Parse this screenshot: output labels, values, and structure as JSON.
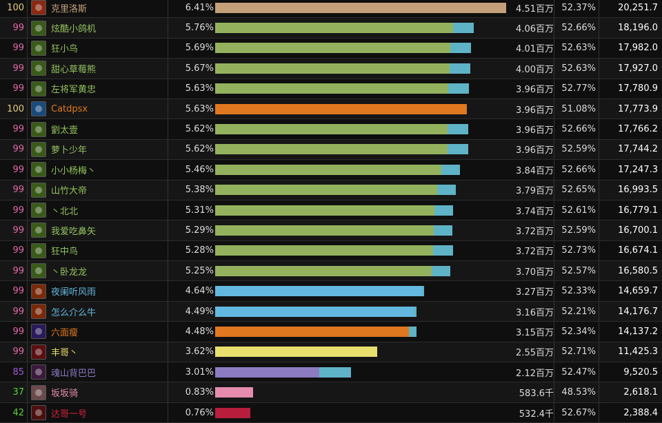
{
  "colors": {
    "resto_bar": "#94b25e",
    "orange_bar": "#e0781f",
    "blue_bar": "#63b8df",
    "tan_bar": "#c4a07a",
    "yellow_bar": "#e8df6e",
    "purple_bar": "#8c7bc1",
    "pink_bar": "#e58cae",
    "red_bar": "#b81e3c",
    "tail": "#5fb3c6"
  },
  "rows": [
    {
      "score": "100",
      "score_color": "#e5cc80",
      "name": "克里洛斯",
      "name_color": "#c4a07a",
      "icon": "warrior-icon",
      "icon_bg": "#8a2a12",
      "percent": "6.41%",
      "amount": "4.51百万",
      "rate": "52.37%",
      "value": "20,251.7",
      "bar_fraction": 1.0,
      "tail_fraction": 0.0,
      "bar_color": "#c4a07a"
    },
    {
      "score": "99",
      "score_color": "#e268a8",
      "name": "炫酷小鸽机",
      "name_color": "#94c25e",
      "icon": "druid-resto-icon",
      "icon_bg": "#3a5a1a",
      "percent": "5.76%",
      "amount": "4.06百万",
      "rate": "52.66%",
      "value": "18,196.0",
      "bar_fraction": 0.818,
      "tail_fraction": 0.07,
      "bar_color": "#94b25e"
    },
    {
      "score": "99",
      "score_color": "#e268a8",
      "name": "狂小鸟",
      "name_color": "#94c25e",
      "icon": "druid-resto-icon",
      "icon_bg": "#3a5a1a",
      "percent": "5.69%",
      "amount": "4.01百万",
      "rate": "52.63%",
      "value": "17,982.0",
      "bar_fraction": 0.808,
      "tail_fraction": 0.07,
      "bar_color": "#94b25e"
    },
    {
      "score": "99",
      "score_color": "#e268a8",
      "name": "甜心草莓熊",
      "name_color": "#94c25e",
      "icon": "druid-resto-icon",
      "icon_bg": "#3a5a1a",
      "percent": "5.67%",
      "amount": "4.00百万",
      "rate": "52.63%",
      "value": "17,927.0",
      "bar_fraction": 0.806,
      "tail_fraction": 0.07,
      "bar_color": "#94b25e"
    },
    {
      "score": "99",
      "score_color": "#e268a8",
      "name": "左将军黄忠",
      "name_color": "#94c25e",
      "icon": "druid-resto-icon",
      "icon_bg": "#3a5a1a",
      "percent": "5.63%",
      "amount": "3.96百万",
      "rate": "52.77%",
      "value": "17,780.9",
      "bar_fraction": 0.8,
      "tail_fraction": 0.07,
      "bar_color": "#94b25e"
    },
    {
      "score": "100",
      "score_color": "#e5cc80",
      "name": "Catdpsx",
      "name_color": "#e0781f",
      "icon": "druid-feral-icon",
      "icon_bg": "#1a4a7a",
      "percent": "5.63%",
      "amount": "3.96百万",
      "rate": "51.08%",
      "value": "17,773.9",
      "bar_fraction": 0.865,
      "tail_fraction": 0.0,
      "bar_color": "#e0781f"
    },
    {
      "score": "99",
      "score_color": "#e268a8",
      "name": "劉太壹",
      "name_color": "#94c25e",
      "icon": "druid-resto-icon",
      "icon_bg": "#3a5a1a",
      "percent": "5.62%",
      "amount": "3.96百万",
      "rate": "52.66%",
      "value": "17,766.2",
      "bar_fraction": 0.799,
      "tail_fraction": 0.07,
      "bar_color": "#94b25e"
    },
    {
      "score": "99",
      "score_color": "#e268a8",
      "name": "萝卜少年",
      "name_color": "#94c25e",
      "icon": "druid-resto-icon",
      "icon_bg": "#3a5a1a",
      "percent": "5.62%",
      "amount": "3.96百万",
      "rate": "52.59%",
      "value": "17,744.2",
      "bar_fraction": 0.799,
      "tail_fraction": 0.07,
      "bar_color": "#94b25e"
    },
    {
      "score": "99",
      "score_color": "#e268a8",
      "name": "小小杨梅丶",
      "name_color": "#94c25e",
      "icon": "druid-resto-icon",
      "icon_bg": "#3a5a1a",
      "percent": "5.46%",
      "amount": "3.84百万",
      "rate": "52.66%",
      "value": "17,247.3",
      "bar_fraction": 0.778,
      "tail_fraction": 0.065,
      "bar_color": "#94b25e"
    },
    {
      "score": "99",
      "score_color": "#e268a8",
      "name": "山竹大帝",
      "name_color": "#94c25e",
      "icon": "druid-resto-icon",
      "icon_bg": "#3a5a1a",
      "percent": "5.38%",
      "amount": "3.79百万",
      "rate": "52.65%",
      "value": "16,993.5",
      "bar_fraction": 0.764,
      "tail_fraction": 0.065,
      "bar_color": "#94b25e"
    },
    {
      "score": "99",
      "score_color": "#e268a8",
      "name": "丶北北",
      "name_color": "#94c25e",
      "icon": "druid-resto-icon",
      "icon_bg": "#3a5a1a",
      "percent": "5.31%",
      "amount": "3.74百万",
      "rate": "52.61%",
      "value": "16,779.1",
      "bar_fraction": 0.754,
      "tail_fraction": 0.065,
      "bar_color": "#94b25e"
    },
    {
      "score": "99",
      "score_color": "#e268a8",
      "name": "我爱吃鼻矢",
      "name_color": "#94c25e",
      "icon": "druid-resto-icon",
      "icon_bg": "#3a5a1a",
      "percent": "5.29%",
      "amount": "3.72百万",
      "rate": "52.59%",
      "value": "16,700.1",
      "bar_fraction": 0.75,
      "tail_fraction": 0.065,
      "bar_color": "#94b25e"
    },
    {
      "score": "99",
      "score_color": "#e268a8",
      "name": "狂中鸟",
      "name_color": "#94c25e",
      "icon": "druid-resto-icon",
      "icon_bg": "#3a5a1a",
      "percent": "5.28%",
      "amount": "3.72百万",
      "rate": "52.73%",
      "value": "16,674.1",
      "bar_fraction": 0.748,
      "tail_fraction": 0.068,
      "bar_color": "#94b25e"
    },
    {
      "score": "99",
      "score_color": "#e268a8",
      "name": "丶卧龙龙",
      "name_color": "#94c25e",
      "icon": "druid-resto-icon",
      "icon_bg": "#3a5a1a",
      "percent": "5.25%",
      "amount": "3.70百万",
      "rate": "52.57%",
      "value": "16,580.5",
      "bar_fraction": 0.745,
      "tail_fraction": 0.065,
      "bar_color": "#94b25e"
    },
    {
      "score": "99",
      "score_color": "#e268a8",
      "name": "夜阑听风雨",
      "name_color": "#63b8df",
      "icon": "mage-fire-icon",
      "icon_bg": "#7a2a0a",
      "percent": "4.64%",
      "amount": "3.27百万",
      "rate": "52.33%",
      "value": "14,659.7",
      "bar_fraction": 0.71,
      "tail_fraction": 0.007,
      "bar_color": "#63b8df"
    },
    {
      "score": "99",
      "score_color": "#e268a8",
      "name": "怎么介么牛",
      "name_color": "#63b8df",
      "icon": "mage-fire-icon",
      "icon_bg": "#7a2a0a",
      "percent": "4.49%",
      "amount": "3.16百万",
      "rate": "52.21%",
      "value": "14,176.7",
      "bar_fraction": 0.682,
      "tail_fraction": 0.01,
      "bar_color": "#63b8df"
    },
    {
      "score": "99",
      "score_color": "#e268a8",
      "name": "六面瘦",
      "name_color": "#e0781f",
      "icon": "druid-moon-icon",
      "icon_bg": "#2a1a5a",
      "percent": "4.48%",
      "amount": "3.15百万",
      "rate": "52.34%",
      "value": "14,137.2",
      "bar_fraction": 0.665,
      "tail_fraction": 0.025,
      "bar_color": "#e0781f"
    },
    {
      "score": "99",
      "score_color": "#e268a8",
      "name": "丰哥丶",
      "name_color": "#e8df6e",
      "icon": "rogue-icon",
      "icon_bg": "#5a1010",
      "percent": "3.62%",
      "amount": "2.55百万",
      "rate": "52.71%",
      "value": "11,425.3",
      "bar_fraction": 0.558,
      "tail_fraction": 0.0,
      "bar_color": "#e8df6e"
    },
    {
      "score": "85",
      "score_color": "#a25ad8",
      "name": "魂山背巴巴",
      "name_color": "#8c7bc1",
      "icon": "warlock-icon",
      "icon_bg": "#3a1a3a",
      "percent": "3.01%",
      "amount": "2.12百万",
      "rate": "52.47%",
      "value": "9,520.5",
      "bar_fraction": 0.358,
      "tail_fraction": 0.108,
      "bar_color": "#8c7bc1"
    },
    {
      "score": "37",
      "score_color": "#5ed23a",
      "name": "坂坂骑",
      "name_color": "#e58cae",
      "icon": "paladin-icon",
      "icon_bg": "#6a4a4a",
      "percent": "0.83%",
      "amount": "583.6千",
      "rate": "48.53%",
      "value": "2,618.1",
      "bar_fraction": 0.13,
      "tail_fraction": 0.0,
      "bar_color": "#e58cae"
    },
    {
      "score": "42",
      "score_color": "#5ed23a",
      "name": "达哥一号",
      "name_color": "#d0243c",
      "icon": "deathknight-icon",
      "icon_bg": "#4a1010",
      "percent": "0.76%",
      "amount": "532.4千",
      "rate": "52.67%",
      "value": "2,388.4",
      "bar_fraction": 0.12,
      "tail_fraction": 0.0,
      "bar_color": "#b81e3c"
    }
  ]
}
